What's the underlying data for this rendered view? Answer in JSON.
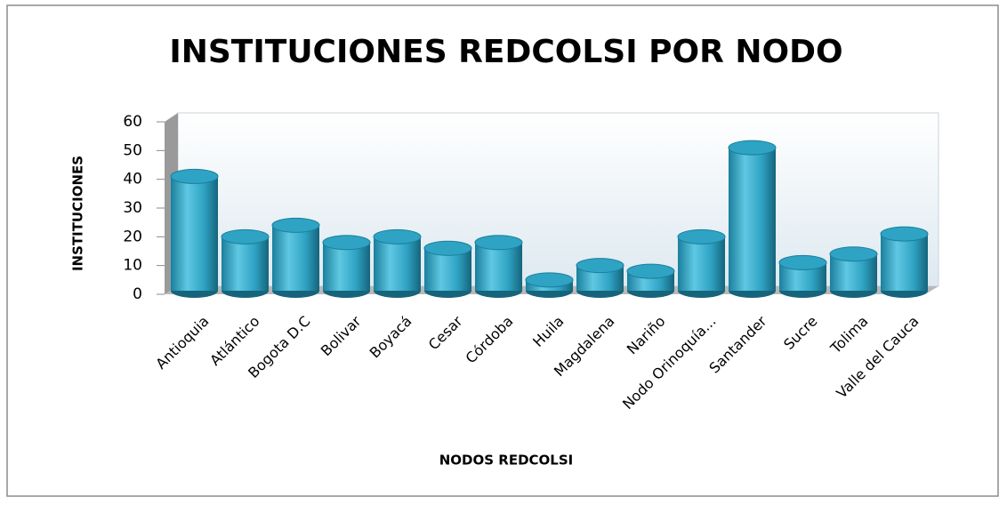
{
  "chart_data": {
    "type": "bar3d",
    "title": "INSTITUCIONES REDCOLSI POR NODO",
    "x_label": "NODOS REDCOLSI",
    "y_label": "INSTITUCIONES",
    "categories": [
      "Antioquia",
      "Atlántico",
      "Bogota D.C",
      "Bolivar",
      "Boyacá",
      "Cesar",
      "Córdoba",
      "Huila",
      "Magdalena",
      "Nariño",
      "Nodo Orinoquía...",
      "Santander",
      "Sucre",
      "Tolima",
      "Valle del Cauca"
    ],
    "values": [
      41,
      20,
      24,
      18,
      20,
      16,
      18,
      5,
      10,
      8,
      20,
      51,
      11,
      14,
      21
    ],
    "color": "#2fa3c4",
    "ylim": [
      0,
      60
    ],
    "yticks": [
      0,
      10,
      20,
      30,
      40,
      50,
      60
    ],
    "grid": false
  }
}
